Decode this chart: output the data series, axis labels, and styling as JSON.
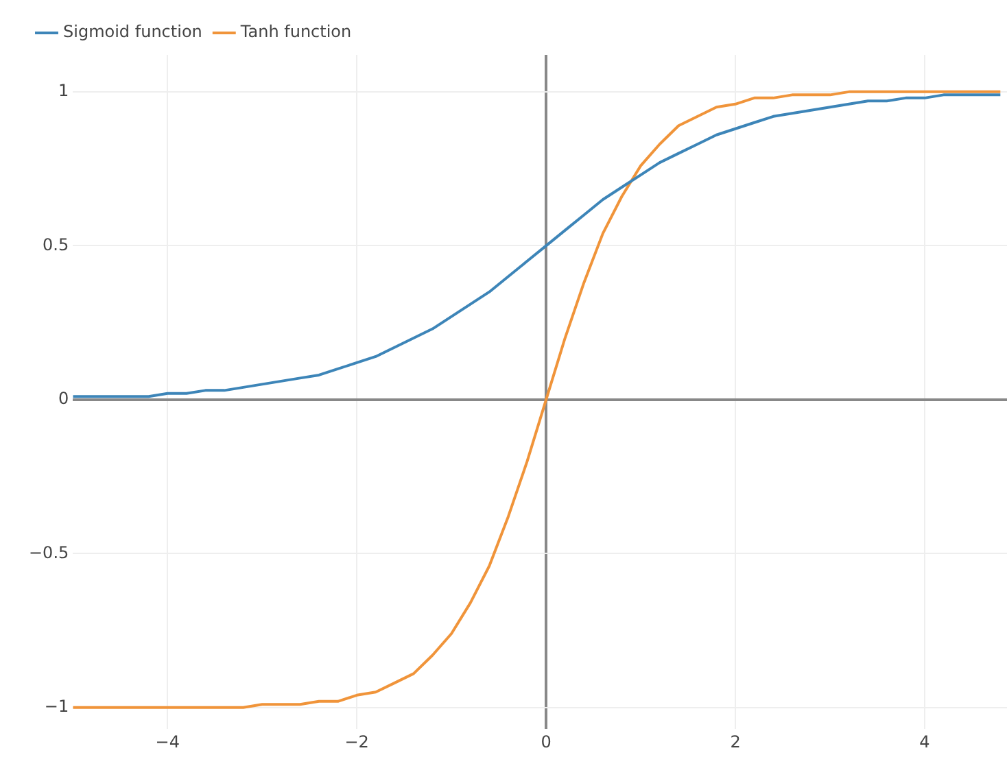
{
  "chart_data": {
    "type": "line",
    "legend": "top left",
    "grid": true,
    "marker": "none",
    "line_style": "solid",
    "xlim": [
      -5,
      4.87
    ],
    "ylim": [
      -1.07,
      1.12
    ],
    "xticks": [
      {
        "value": -4,
        "label": "−4"
      },
      {
        "value": -2,
        "label": "−2"
      },
      0,
      2,
      4
    ],
    "yticks": [
      {
        "value": -1,
        "label": "−1"
      },
      {
        "value": -0.5,
        "label": "−0.5"
      },
      0,
      0.5,
      1
    ],
    "x": [
      -5,
      -4.8,
      -4.6,
      -4.4,
      -4.2,
      -4,
      -3.8,
      -3.6,
      -3.4,
      -3.2,
      -3,
      -2.8,
      -2.6,
      -2.4,
      -2.2,
      -2,
      -1.8,
      -1.6,
      -1.4,
      -1.2,
      -1,
      -0.8,
      -0.6,
      -0.4,
      -0.2,
      0,
      0.2,
      0.4,
      0.6,
      0.8,
      1,
      1.2,
      1.4,
      1.6,
      1.8,
      2,
      2.2,
      2.4,
      2.6,
      2.8,
      3,
      3.2,
      3.4,
      3.6,
      3.8,
      4,
      4.2,
      4.4,
      4.6,
      4.8
    ],
    "series": [
      {
        "name": "Sigmoid function",
        "color": "#3d85b8",
        "values": [
          0.01,
          0.01,
          0.01,
          0.01,
          0.01,
          0.02,
          0.02,
          0.03,
          0.03,
          0.04,
          0.05,
          0.06,
          0.07,
          0.08,
          0.1,
          0.12,
          0.14,
          0.17,
          0.2,
          0.23,
          0.27,
          0.31,
          0.35,
          0.4,
          0.45,
          0.5,
          0.55,
          0.6,
          0.65,
          0.69,
          0.73,
          0.77,
          0.8,
          0.83,
          0.86,
          0.88,
          0.9,
          0.92,
          0.93,
          0.94,
          0.95,
          0.96,
          0.97,
          0.97,
          0.98,
          0.98,
          0.99,
          0.99,
          0.99,
          0.99
        ]
      },
      {
        "name": "Tanh function",
        "color": "#f0943a",
        "values": [
          -1,
          -1,
          -1,
          -1,
          -1,
          -1,
          -1,
          -1,
          -1,
          -1,
          -0.99,
          -0.99,
          -0.99,
          -0.98,
          -0.98,
          -0.96,
          -0.95,
          -0.92,
          -0.89,
          -0.83,
          -0.76,
          -0.66,
          -0.54,
          -0.38,
          -0.2,
          0,
          0.2,
          0.38,
          0.54,
          0.66,
          0.76,
          0.83,
          0.89,
          0.92,
          0.95,
          0.96,
          0.98,
          0.98,
          0.99,
          0.99,
          0.99,
          1,
          1,
          1,
          1,
          1,
          1,
          1,
          1,
          1
        ]
      }
    ]
  }
}
